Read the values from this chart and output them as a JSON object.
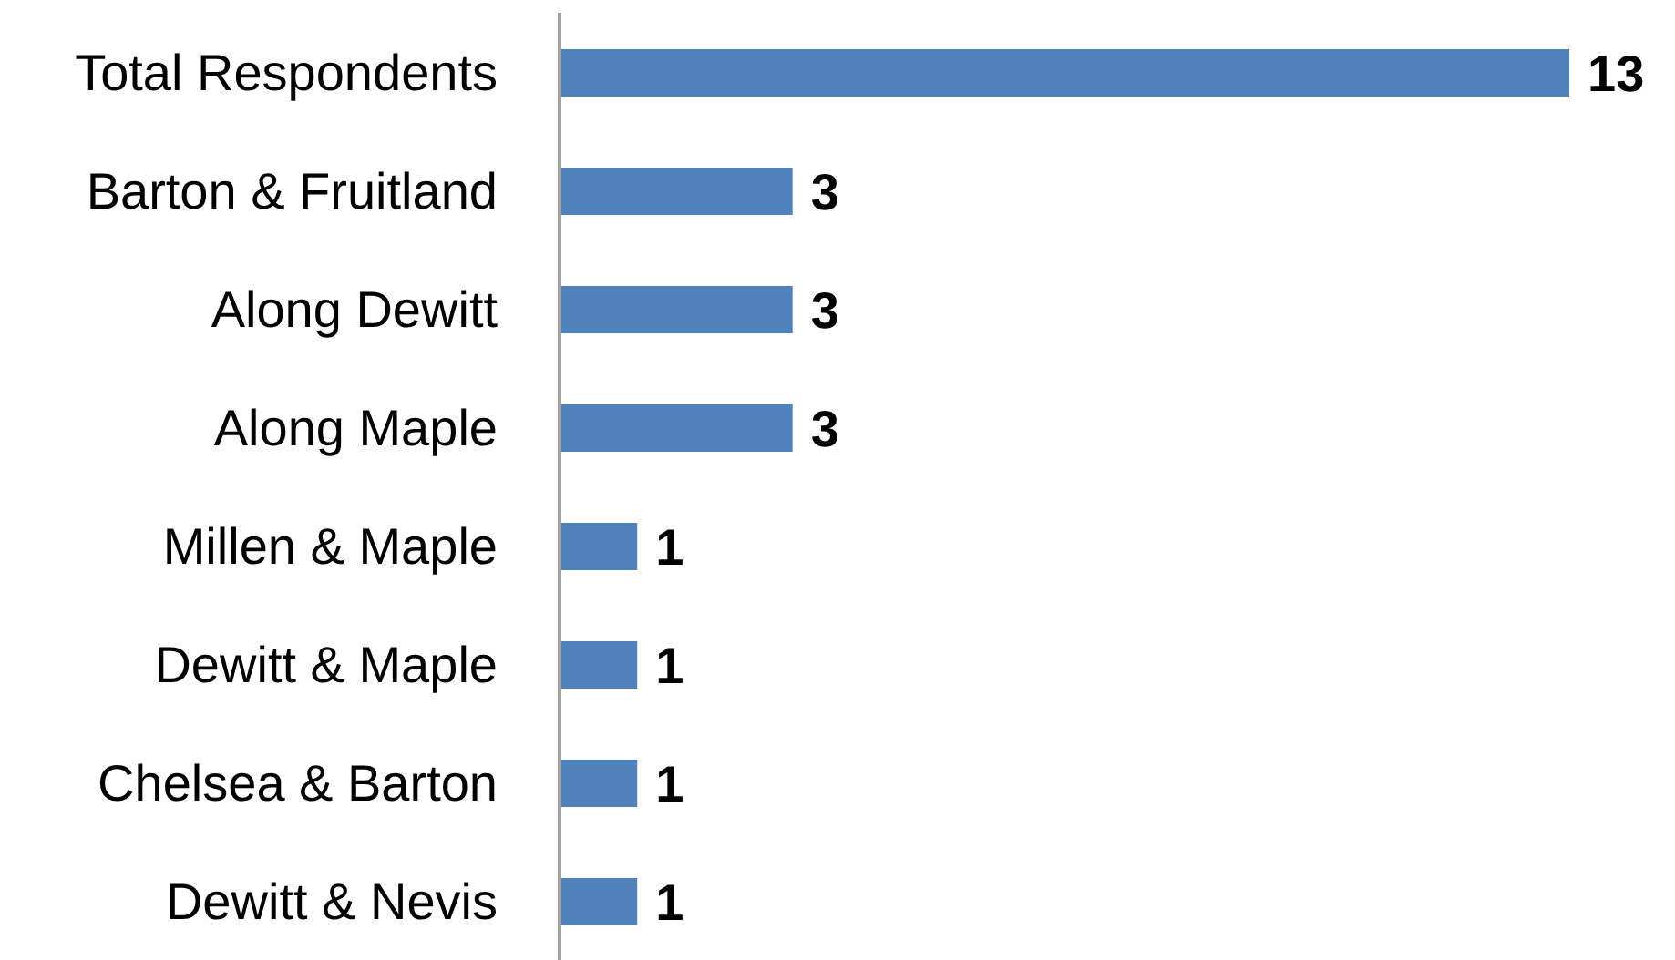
{
  "chart_data": {
    "type": "bar",
    "orientation": "horizontal",
    "categories": [
      "Total Respondents",
      "Barton & Fruitland",
      "Along Dewitt",
      "Along Maple",
      "Millen & Maple",
      "Dewitt & Maple",
      "Chelsea & Barton",
      "Dewitt & Nevis"
    ],
    "values": [
      13,
      3,
      3,
      3,
      1,
      1,
      1,
      1
    ],
    "color": "#4f81bd",
    "data_labels": true
  }
}
